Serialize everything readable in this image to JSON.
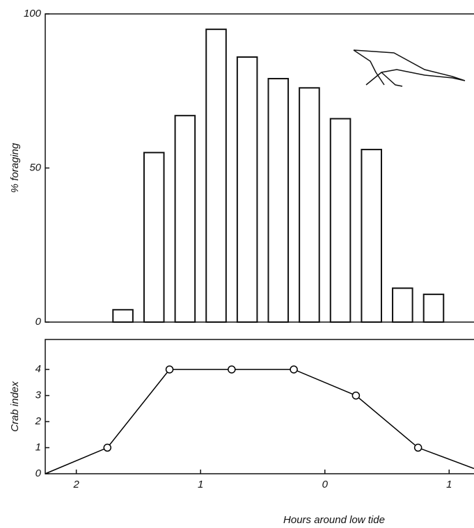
{
  "chart_data": [
    {
      "type": "bar",
      "ylabel": "% foraging",
      "x": [
        -1.625,
        -1.375,
        -1.125,
        -0.875,
        -0.625,
        -0.375,
        -0.125,
        0.125,
        0.375,
        0.625,
        0.875
      ],
      "values": [
        4,
        55,
        67,
        95,
        86,
        79,
        76,
        66,
        56,
        11,
        9
      ],
      "color": "#ffffff",
      "xlim": [
        -2.25,
        1.2
      ],
      "ylim": [
        0,
        100
      ],
      "yticks": [
        0,
        50,
        100
      ]
    },
    {
      "type": "line",
      "xlabel": "Hours around low tide",
      "ylabel": "Crab index",
      "x": [
        -2.25,
        -1.75,
        -1.25,
        -0.75,
        -0.25,
        0.25,
        0.75,
        1.2
      ],
      "values": [
        0,
        1,
        4,
        4,
        4,
        3,
        1,
        0.2
      ],
      "color": "#000000",
      "xlim": [
        -2.25,
        1.2
      ],
      "ylim": [
        0,
        5.15
      ],
      "yticks": [
        0,
        1,
        2,
        3,
        4
      ],
      "xticks": [
        {
          "value": -2,
          "label": "2"
        },
        {
          "value": -1,
          "label": "1"
        },
        0,
        {
          "value": 1,
          "label": "1"
        }
      ]
    }
  ]
}
